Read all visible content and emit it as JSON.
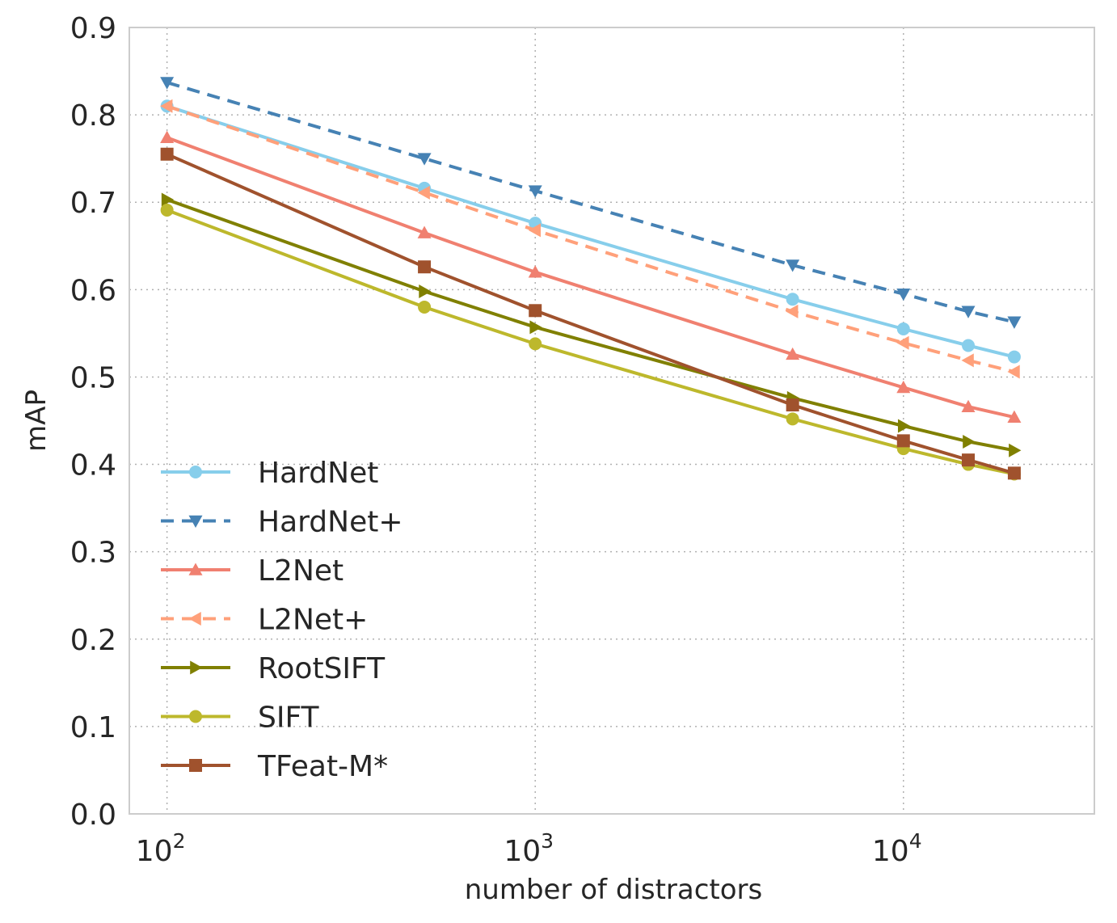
{
  "chart_data": {
    "type": "line",
    "title": "",
    "xlabel": "number of distractors",
    "ylabel": "mAP",
    "xscale": "log",
    "xlim": [
      79,
      33000
    ],
    "ylim": [
      0.0,
      0.9
    ],
    "x": [
      100,
      500,
      1000,
      5000,
      10000,
      15000,
      20000
    ],
    "xticks": [
      {
        "value": 100,
        "base": "10",
        "exp": "2"
      },
      {
        "value": 1000,
        "base": "10",
        "exp": "3"
      },
      {
        "value": 10000,
        "base": "10",
        "exp": "4"
      }
    ],
    "yticks": [
      "0.0",
      "0.1",
      "0.2",
      "0.3",
      "0.4",
      "0.5",
      "0.6",
      "0.7",
      "0.8",
      "0.9"
    ],
    "grid": true,
    "legend_position": "lower-left",
    "series": [
      {
        "name": "HardNet",
        "color": "#87CEEB",
        "dash": "solid",
        "marker": "circle",
        "values": [
          0.81,
          0.716,
          0.676,
          0.589,
          0.555,
          0.536,
          0.523
        ]
      },
      {
        "name": "HardNet+",
        "color": "#4682B4",
        "dash": "dashed",
        "marker": "triangle-down",
        "values": [
          0.837,
          0.75,
          0.713,
          0.628,
          0.595,
          0.575,
          0.563
        ]
      },
      {
        "name": "L2Net",
        "color": "#F08070",
        "dash": "solid",
        "marker": "triangle-up",
        "values": [
          0.774,
          0.665,
          0.62,
          0.526,
          0.488,
          0.466,
          0.454
        ]
      },
      {
        "name": "L2Net+",
        "color": "#FFA07A",
        "dash": "dashed",
        "marker": "triangle-left",
        "values": [
          0.81,
          0.711,
          0.668,
          0.575,
          0.539,
          0.519,
          0.506
        ]
      },
      {
        "name": "RootSIFT",
        "color": "#808000",
        "dash": "solid",
        "marker": "triangle-right",
        "values": [
          0.703,
          0.598,
          0.557,
          0.476,
          0.444,
          0.426,
          0.416
        ]
      },
      {
        "name": "SIFT",
        "color": "#BDB82C",
        "dash": "solid",
        "marker": "circle",
        "values": [
          0.691,
          0.58,
          0.538,
          0.452,
          0.418,
          0.4,
          0.389
        ]
      },
      {
        "name": "TFeat-M*",
        "color": "#A0522D",
        "dash": "solid",
        "marker": "square",
        "values": [
          0.755,
          0.626,
          0.576,
          0.468,
          0.427,
          0.405,
          0.39
        ]
      }
    ]
  }
}
